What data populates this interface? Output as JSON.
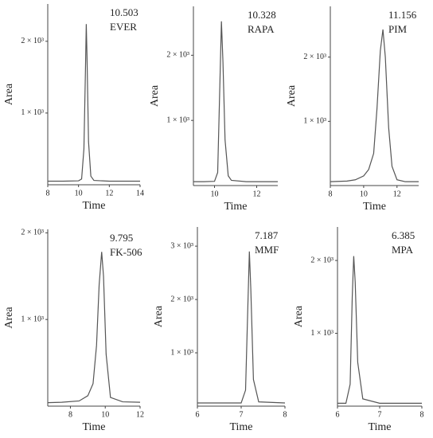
{
  "chart_data": [
    {
      "type": "line",
      "xlabel": "Time",
      "ylabel": "Area",
      "annotations": [
        "10.503",
        "EVER"
      ],
      "x": [
        8,
        9,
        10,
        10.2,
        10.35,
        10.45,
        10.503,
        10.55,
        10.65,
        10.8,
        11,
        12,
        13,
        14
      ],
      "series": [
        {
          "color": "#555555",
          "values": [
            50,
            50,
            55,
            80,
            500,
            1600,
            2240,
            1800,
            600,
            120,
            60,
            50,
            50,
            50
          ]
        }
      ],
      "xlim": [
        8,
        14
      ],
      "xticks": [
        8,
        10,
        12,
        14
      ],
      "ylim": [
        0,
        2520
      ],
      "yticks": [
        {
          "value": 1000,
          "label": "1 × 10³"
        },
        {
          "value": 2000,
          "label": "2 × 10³"
        }
      ]
    },
    {
      "type": "line",
      "xlabel": "Time",
      "ylabel": "Area",
      "annotations": [
        "10.328",
        "RAPA"
      ],
      "x": [
        9,
        9.5,
        10,
        10.15,
        10.25,
        10.328,
        10.4,
        10.5,
        10.65,
        10.8,
        11.5,
        12,
        13
      ],
      "series": [
        {
          "color": "#555555",
          "values": [
            60,
            60,
            65,
            200,
            1500,
            2520,
            1900,
            700,
            150,
            80,
            60,
            60,
            60
          ]
        }
      ],
      "xlim": [
        9,
        13
      ],
      "xticks": [
        10,
        12
      ],
      "ylim": [
        0,
        2750
      ],
      "yticks": [
        {
          "value": 1000,
          "label": "1 × 10³"
        },
        {
          "value": 2000,
          "label": "2 × 10³"
        }
      ]
    },
    {
      "type": "line",
      "xlabel": "Time",
      "ylabel": "Area",
      "annotations": [
        "11.156",
        "PIM"
      ],
      "x": [
        8,
        9,
        9.5,
        10,
        10.3,
        10.6,
        10.8,
        11,
        11.156,
        11.3,
        11.5,
        11.7,
        12,
        12.5,
        13.3
      ],
      "series": [
        {
          "color": "#555555",
          "values": [
            60,
            70,
            90,
            150,
            250,
            500,
            1200,
            2100,
            2430,
            2000,
            900,
            300,
            90,
            60,
            60
          ]
        }
      ],
      "xlim": [
        8,
        13.3
      ],
      "xticks": [
        8,
        10,
        12
      ],
      "ylim": [
        0,
        2790
      ],
      "yticks": [
        {
          "value": 1000,
          "label": "1 × 10³"
        },
        {
          "value": 2000,
          "label": "2 × 10³"
        }
      ]
    },
    {
      "type": "line",
      "xlabel": "Time",
      "ylabel": "Area",
      "annotations": [
        "9.795",
        "FK-506"
      ],
      "x": [
        6.7,
        7.5,
        8.5,
        9,
        9.3,
        9.5,
        9.65,
        9.795,
        9.9,
        10.05,
        10.3,
        11,
        12
      ],
      "series": [
        {
          "color": "#555555",
          "values": [
            40,
            45,
            60,
            120,
            260,
            700,
            1400,
            1780,
            1500,
            600,
            100,
            50,
            45
          ]
        }
      ],
      "xlim": [
        6.7,
        12
      ],
      "xticks": [
        8,
        10,
        12
      ],
      "ylim": [
        0,
        2040
      ],
      "yticks": [
        {
          "value": 1000,
          "label": "1 × 10³"
        },
        {
          "value": 2000,
          "label": "2 × 10³"
        }
      ]
    },
    {
      "type": "line",
      "xlabel": "Time",
      "ylabel": "Area",
      "annotations": [
        "7.187",
        "MMF"
      ],
      "x": [
        6,
        6.5,
        7,
        7.1,
        7.15,
        7.187,
        7.22,
        7.28,
        7.4,
        8
      ],
      "series": [
        {
          "color": "#555555",
          "values": [
            60,
            60,
            60,
            300,
            1800,
            2900,
            2200,
            500,
            80,
            60
          ]
        }
      ],
      "xlim": [
        6,
        8
      ],
      "xticks": [
        6,
        7,
        8
      ],
      "ylim": [
        0,
        3360
      ],
      "yticks": [
        {
          "value": 1000,
          "label": "1 × 10³"
        },
        {
          "value": 2000,
          "label": "2 × 10³"
        },
        {
          "value": 3000,
          "label": "3 × 10³"
        }
      ]
    },
    {
      "type": "line",
      "xlabel": "Time",
      "ylabel": "Area",
      "annotations": [
        "6.385",
        "MPA"
      ],
      "x": [
        6,
        6.2,
        6.3,
        6.35,
        6.385,
        6.42,
        6.48,
        6.6,
        7,
        8
      ],
      "series": [
        {
          "color": "#555555",
          "values": [
            40,
            40,
            300,
            1500,
            2060,
            1700,
            600,
            100,
            40,
            40
          ]
        }
      ],
      "xlim": [
        6,
        8
      ],
      "xticks": [
        6,
        7,
        8
      ],
      "ylim": [
        0,
        2460
      ],
      "yticks": [
        {
          "value": 1000,
          "label": "1 × 10³"
        },
        {
          "value": 2000,
          "label": "2 × 10³"
        }
      ]
    }
  ]
}
